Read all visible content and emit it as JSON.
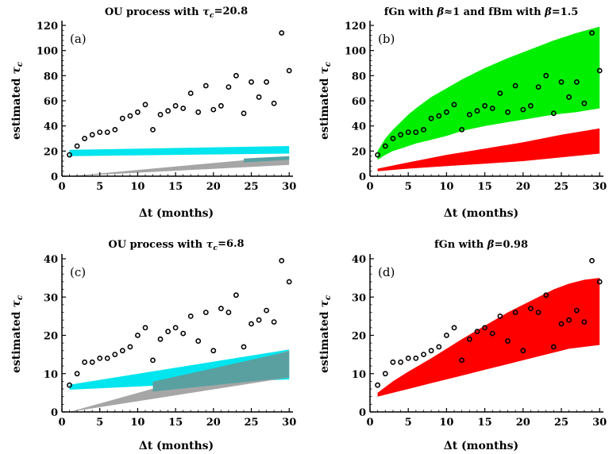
{
  "chart_data": [
    {
      "id": "a",
      "type": "scatter",
      "panel_label": "(a)",
      "title": "OU process with τ_c=20.8",
      "title_parts": [
        "OU process with ",
        "τ",
        "c",
        "=20.8"
      ],
      "xlabel": "Δt (months)",
      "ylabel_parts": [
        "estimated ",
        "τ",
        "c"
      ],
      "xlim": [
        0,
        30.5
      ],
      "ylim": [
        0,
        120
      ],
      "xticks": [
        0,
        5,
        10,
        15,
        20,
        25,
        30
      ],
      "yticks": [
        0,
        20,
        40,
        60,
        80,
        100,
        120
      ],
      "series": [
        {
          "kind": "band",
          "color": "#00e5ee",
          "x": [
            1,
            30
          ],
          "lower": [
            16,
            18
          ],
          "upper": [
            21,
            24
          ]
        },
        {
          "kind": "band",
          "color": "#a6a6a6",
          "x": [
            1,
            30
          ],
          "lower": [
            0,
            9
          ],
          "upper": [
            0,
            16
          ]
        },
        {
          "kind": "band",
          "color": "#5aa0a0",
          "x": [
            24,
            30
          ],
          "lower": [
            11,
            13
          ],
          "upper": [
            14,
            16
          ]
        },
        {
          "kind": "points",
          "x": [
            1,
            2,
            3,
            4,
            5,
            6,
            7,
            8,
            9,
            10,
            11,
            12,
            13,
            14,
            15,
            16,
            17,
            18,
            19,
            20,
            21,
            22,
            23,
            24,
            25,
            26,
            27,
            28,
            29,
            30
          ],
          "y": [
            17,
            24,
            30,
            33,
            35,
            35,
            37,
            46,
            48,
            51,
            57,
            37,
            49,
            52,
            56,
            54,
            66,
            51,
            72,
            53,
            56,
            71,
            80,
            50,
            75,
            63,
            75,
            58,
            114,
            84
          ]
        }
      ]
    },
    {
      "id": "b",
      "type": "scatter",
      "panel_label": "(b)",
      "title": "fGn with β≈1 and fBm with β=1.5",
      "title_parts": [
        "fGn with ",
        "β",
        "≈1 and fBm with ",
        "β",
        "=1.5"
      ],
      "xlabel": "Δt (months)",
      "ylabel_parts": [
        "estimated ",
        "τ",
        "c"
      ],
      "xlim": [
        0,
        30.5
      ],
      "ylim": [
        0,
        120
      ],
      "xticks": [
        0,
        5,
        10,
        15,
        20,
        25,
        30
      ],
      "yticks": [
        0,
        20,
        40,
        60,
        80,
        100,
        120
      ],
      "series": [
        {
          "kind": "band",
          "color": "#00ee00",
          "x": [
            1,
            2,
            3,
            4,
            5,
            6,
            8,
            10,
            12,
            15,
            18,
            21,
            24,
            27,
            30
          ],
          "lower": [
            13,
            17,
            20,
            22,
            24,
            26,
            29,
            32,
            36,
            40,
            43,
            46,
            49,
            51,
            54
          ],
          "upper": [
            20,
            30,
            37,
            43,
            49,
            54,
            63,
            70,
            77,
            86,
            94,
            101,
            108,
            114,
            119
          ]
        },
        {
          "kind": "band",
          "color": "#ff0000",
          "x": [
            1,
            5,
            10,
            15,
            20,
            25,
            30
          ],
          "lower": [
            4,
            6,
            8,
            10,
            12,
            15,
            18
          ],
          "upper": [
            6,
            11,
            17,
            22,
            27,
            33,
            38
          ]
        },
        {
          "kind": "points",
          "x": [
            1,
            2,
            3,
            4,
            5,
            6,
            7,
            8,
            9,
            10,
            11,
            12,
            13,
            14,
            15,
            16,
            17,
            18,
            19,
            20,
            21,
            22,
            23,
            24,
            25,
            26,
            27,
            28,
            29,
            30
          ],
          "y": [
            17,
            24,
            30,
            33,
            35,
            35,
            37,
            46,
            48,
            51,
            57,
            37,
            49,
            52,
            56,
            54,
            66,
            51,
            72,
            53,
            56,
            71,
            80,
            50,
            75,
            63,
            75,
            58,
            114,
            84
          ]
        }
      ]
    },
    {
      "id": "c",
      "type": "scatter",
      "panel_label": "(c)",
      "title": "OU process with τ_c=6.8",
      "title_parts": [
        "OU process with ",
        "τ",
        "c",
        "=6.8"
      ],
      "xlabel": "Δt (months)",
      "ylabel_parts": [
        "estimated ",
        "τ",
        "c"
      ],
      "xlim": [
        0,
        30.5
      ],
      "ylim": [
        0,
        40
      ],
      "xticks": [
        0,
        5,
        10,
        15,
        20,
        25,
        30
      ],
      "yticks": [
        0,
        10,
        20,
        30,
        40
      ],
      "series": [
        {
          "kind": "band",
          "color": "#00e5ee",
          "x": [
            1,
            30
          ],
          "lower": [
            5.8,
            8.5
          ],
          "upper": [
            7.1,
            16.3
          ]
        },
        {
          "kind": "band",
          "color": "#a6a6a6",
          "x": [
            1,
            30
          ],
          "lower": [
            0,
            9
          ],
          "upper": [
            0,
            16
          ]
        },
        {
          "kind": "band",
          "color": "#5aa0a0",
          "x": [
            12,
            30
          ],
          "lower": [
            5.3,
            9
          ],
          "upper": [
            7.9,
            15.8
          ]
        },
        {
          "kind": "points",
          "x": [
            1,
            2,
            3,
            4,
            5,
            6,
            7,
            8,
            9,
            10,
            11,
            12,
            13,
            14,
            15,
            16,
            17,
            18,
            19,
            20,
            21,
            22,
            23,
            24,
            25,
            26,
            27,
            28,
            29,
            30
          ],
          "y": [
            7,
            10,
            13,
            13,
            14,
            14,
            15,
            16,
            17,
            20,
            22,
            13.5,
            19,
            21,
            22,
            20.5,
            25,
            18.5,
            26,
            16,
            27,
            26,
            30.5,
            17,
            23,
            24,
            26.5,
            23.5,
            39.5,
            34
          ]
        }
      ]
    },
    {
      "id": "d",
      "type": "scatter",
      "panel_label": "(d)",
      "title": "fGn with β=0.98",
      "title_parts": [
        "fGn with ",
        "β",
        "=0.98"
      ],
      "xlabel": "Δt (months)",
      "ylabel_parts": [
        "estimated ",
        "τ",
        "c"
      ],
      "xlim": [
        0,
        30.5
      ],
      "ylim": [
        0,
        40
      ],
      "xticks": [
        0,
        5,
        10,
        15,
        20,
        25,
        30
      ],
      "yticks": [
        0,
        10,
        20,
        30,
        40
      ],
      "series": [
        {
          "kind": "band",
          "color": "#ff0000",
          "x": [
            1,
            3,
            5,
            8,
            10,
            12,
            15,
            18,
            20,
            22,
            24,
            26,
            28,
            30
          ],
          "lower": [
            4,
            5,
            6,
            7.5,
            8.5,
            9.5,
            11,
            12.5,
            13.5,
            14.5,
            15.5,
            16.5,
            17,
            17.5
          ],
          "upper": [
            5,
            8,
            10.5,
            14,
            16.5,
            19,
            22.5,
            26,
            28,
            30,
            32,
            33.5,
            34.5,
            35
          ]
        },
        {
          "kind": "points",
          "x": [
            1,
            2,
            3,
            4,
            5,
            6,
            7,
            8,
            9,
            10,
            11,
            12,
            13,
            14,
            15,
            16,
            17,
            18,
            19,
            20,
            21,
            22,
            23,
            24,
            25,
            26,
            27,
            28,
            29,
            30
          ],
          "y": [
            7,
            10,
            13,
            13,
            14,
            14,
            15,
            16,
            17,
            20,
            22,
            13.5,
            19,
            21,
            22,
            20.5,
            25,
            18.5,
            26,
            16,
            27,
            26,
            30.5,
            17,
            23,
            24,
            26.5,
            23.5,
            39.5,
            34
          ]
        }
      ]
    }
  ]
}
